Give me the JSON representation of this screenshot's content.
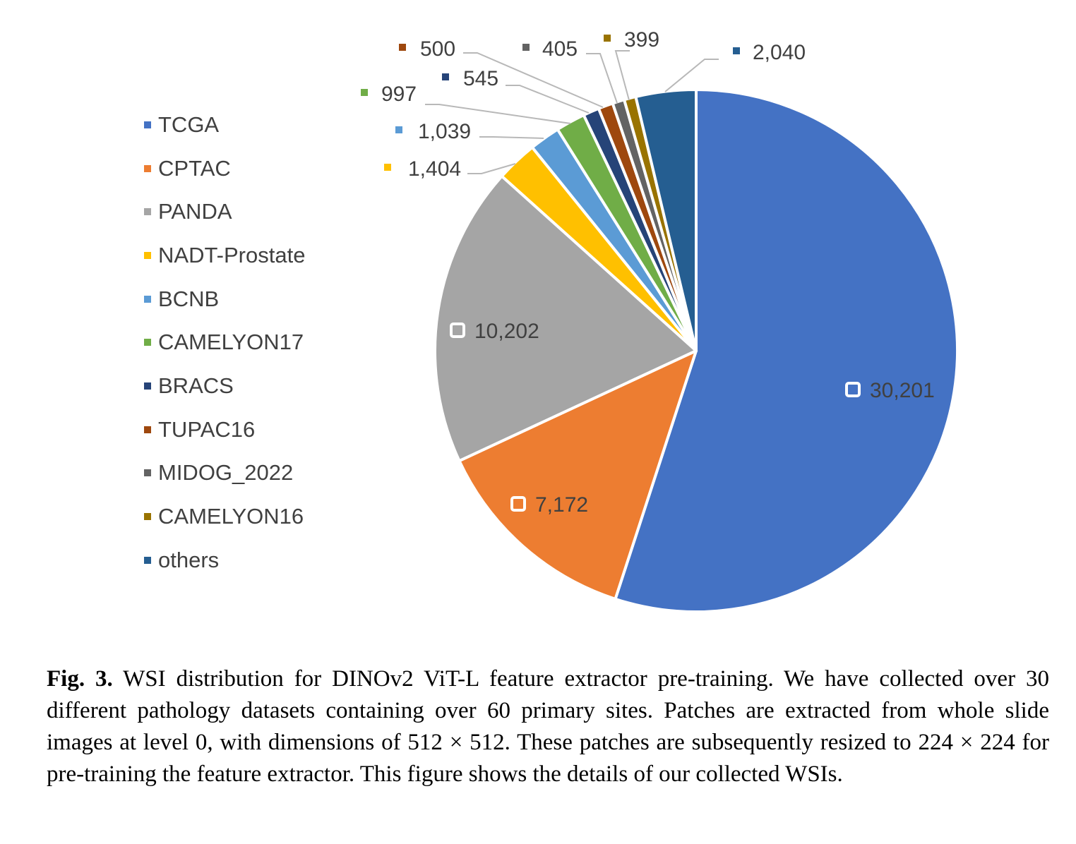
{
  "chart_data": {
    "type": "pie",
    "title": "",
    "slices": [
      {
        "name": "TCGA",
        "value": 30201,
        "label": "30,201",
        "color": "#4472C4"
      },
      {
        "name": "CPTAC",
        "value": 7172,
        "label": "7,172",
        "color": "#ED7D31"
      },
      {
        "name": "PANDA",
        "value": 10202,
        "label": "10,202",
        "color": "#A5A5A5"
      },
      {
        "name": "NADT-Prostate",
        "value": 1404,
        "label": "1,404",
        "color": "#FFC000"
      },
      {
        "name": "BCNB",
        "value": 1039,
        "label": "1,039",
        "color": "#5B9BD5"
      },
      {
        "name": "CAMELYON17",
        "value": 997,
        "label": "997",
        "color": "#70AD47"
      },
      {
        "name": "BRACS",
        "value": 545,
        "label": "545",
        "color": "#264478"
      },
      {
        "name": "TUPAC16",
        "value": 500,
        "label": "500",
        "color": "#9E480E"
      },
      {
        "name": "MIDOG_2022",
        "value": 405,
        "label": "405",
        "color": "#636363"
      },
      {
        "name": "CAMELYON16",
        "value": 399,
        "label": "399",
        "color": "#997300"
      },
      {
        "name": "others",
        "value": 2040,
        "label": "2,040",
        "color": "#255E91"
      }
    ],
    "legend_position": "left"
  },
  "caption": {
    "label": "Fig. 3.",
    "text": "WSI distribution for DINOv2 ViT-L feature extractor pre-training. We have collected over 30 different pathology datasets containing over 60 primary sites. Patches are extracted from whole slide images at level 0, with dimensions of 512 × 512. These patches are subsequently resized to 224 × 224 for pre-training the feature extractor. This figure shows the details of our collected WSIs."
  }
}
